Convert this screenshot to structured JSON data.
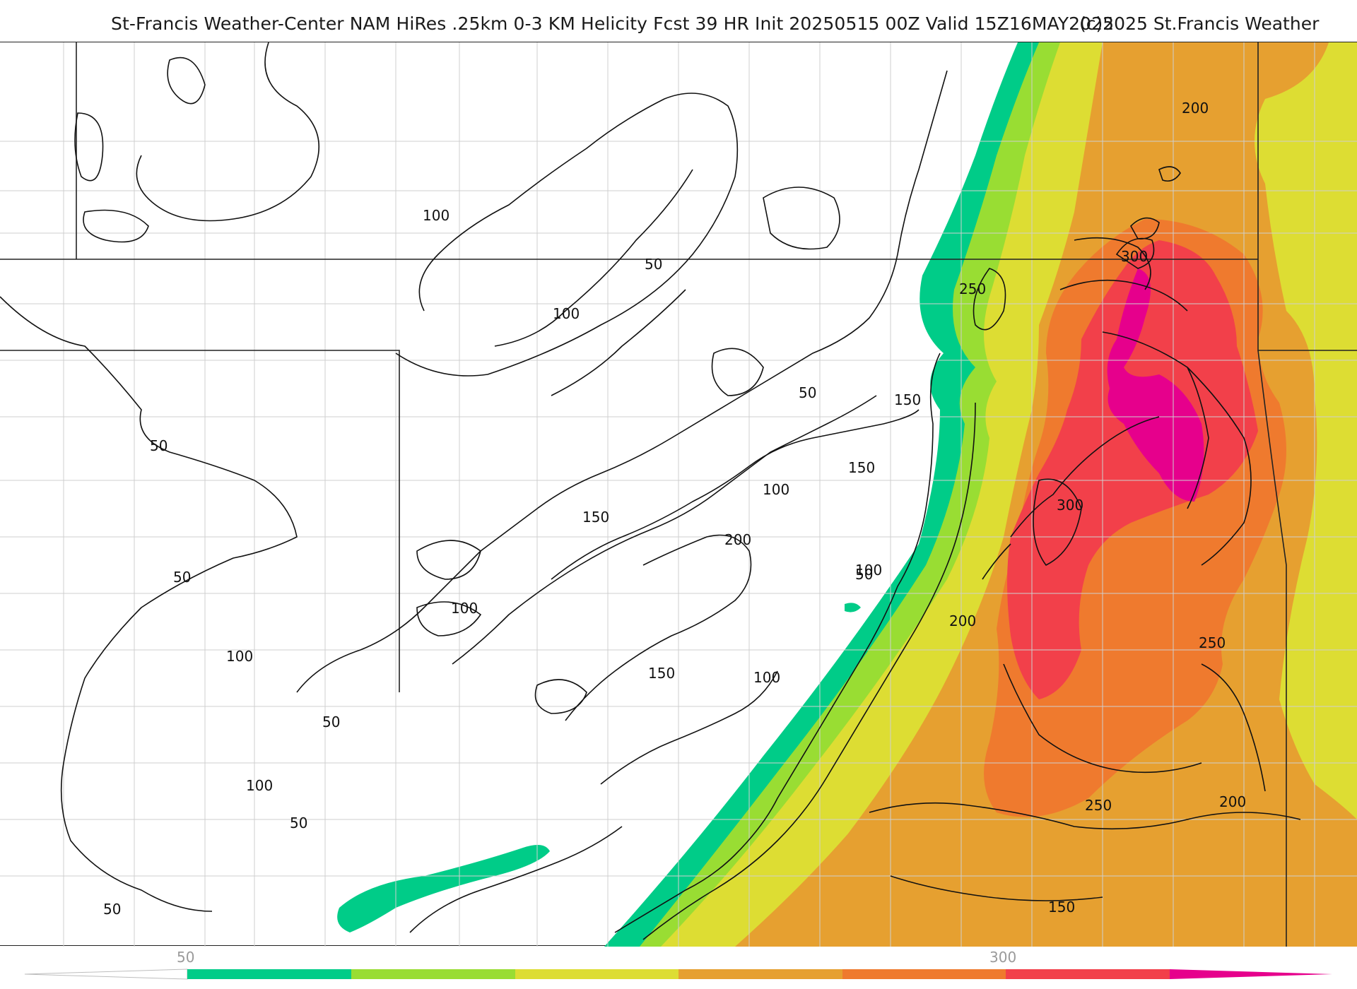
{
  "header": {
    "title": "St-Francis Weather-Center NAM HiRes .25km 0-3 KM Helicity Fcst 39 HR Init 20250515 00Z  Valid 15Z16MAY2025",
    "copyright": "(c)2025 St.Francis Weather"
  },
  "contour_labels": [
    {
      "id": "c1",
      "text": "100"
    },
    {
      "id": "c2",
      "text": "50"
    },
    {
      "id": "c3",
      "text": "100"
    },
    {
      "id": "c4",
      "text": "50"
    },
    {
      "id": "c5",
      "text": "50"
    },
    {
      "id": "c6",
      "text": "150"
    },
    {
      "id": "c7",
      "text": "150"
    },
    {
      "id": "c8",
      "text": "100"
    },
    {
      "id": "c9",
      "text": "150"
    },
    {
      "id": "c10",
      "text": "200"
    },
    {
      "id": "c11",
      "text": "50"
    },
    {
      "id": "c12",
      "text": "100"
    },
    {
      "id": "c13",
      "text": "100"
    },
    {
      "id": "c14",
      "text": "150"
    },
    {
      "id": "c15",
      "text": "100"
    },
    {
      "id": "c16",
      "text": "50"
    },
    {
      "id": "c17",
      "text": "100"
    },
    {
      "id": "c18",
      "text": "50"
    },
    {
      "id": "c19",
      "text": "100"
    },
    {
      "id": "c20",
      "text": "50"
    },
    {
      "id": "c21",
      "text": "50"
    },
    {
      "id": "c22",
      "text": "200"
    },
    {
      "id": "c23",
      "text": "300"
    },
    {
      "id": "c24",
      "text": "250"
    },
    {
      "id": "c25",
      "text": "300"
    },
    {
      "id": "c26",
      "text": "200"
    },
    {
      "id": "c27",
      "text": "250"
    },
    {
      "id": "c28",
      "text": "250"
    },
    {
      "id": "c29",
      "text": "200"
    },
    {
      "id": "c30",
      "text": "150"
    }
  ],
  "legend": {
    "tick_50": "50",
    "tick_300": "300",
    "colors": [
      "#00cc88",
      "#99dd33",
      "#dddd33",
      "#e6a030",
      "#ef7a2e",
      "#f2404a",
      "#e6008c"
    ]
  }
}
